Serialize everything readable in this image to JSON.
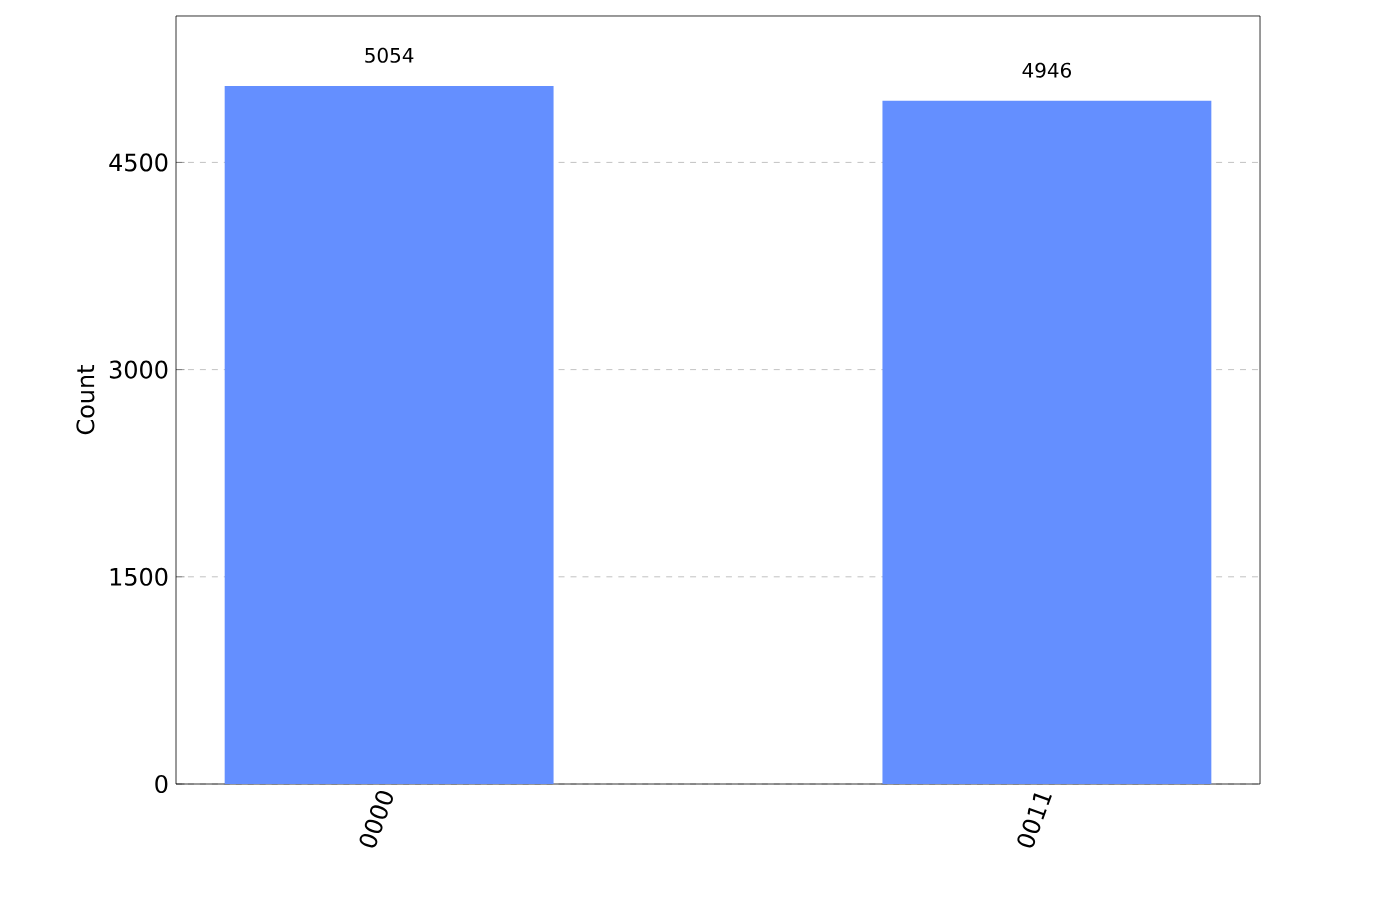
{
  "chart_data": {
    "type": "bar",
    "ylabel": "Count",
    "categories": [
      "0000",
      "0011"
    ],
    "values": [
      5054,
      4946
    ],
    "color": "#648fff",
    "ylim": [
      0,
      5560
    ],
    "yticks": [
      0,
      1500,
      3000,
      4500
    ],
    "grid": "y",
    "data_labels": true
  }
}
